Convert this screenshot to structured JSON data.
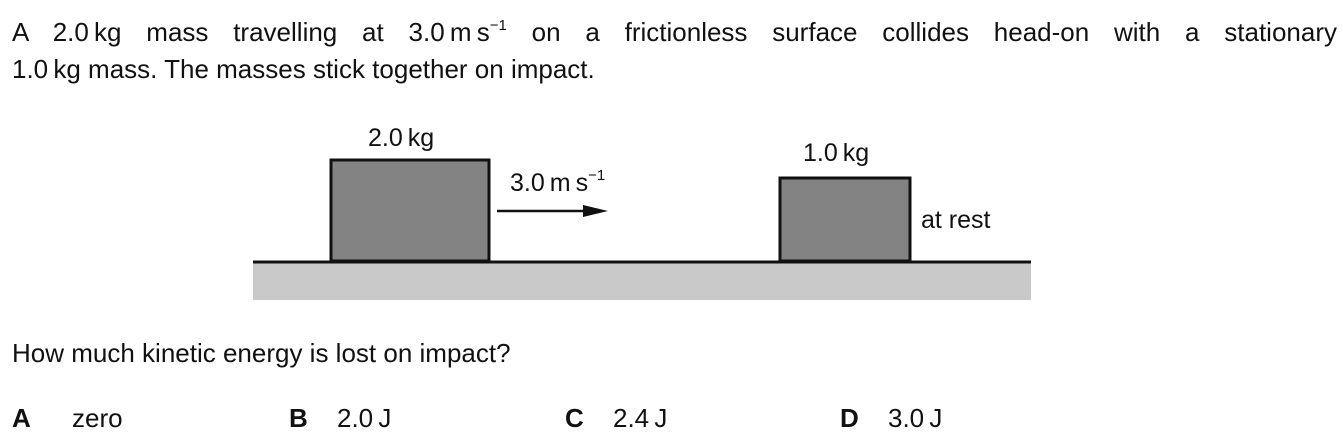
{
  "stem": {
    "line1_prefix": "A 2.0 kg mass travelling at 3.0 m s",
    "line1_sup": "−1",
    "line1_suffix": " on a frictionless surface collides head-on with a stationary",
    "line2": "1.0 kg mass. The masses stick together on impact."
  },
  "diagram": {
    "mass_left_label": "2.0 kg",
    "mass_right_label": "1.0 kg",
    "velocity_label": "3.0 m s",
    "velocity_sup": "−1",
    "rest_label": "at rest",
    "block_color": "#838383",
    "surface_color": "#c9c9c9"
  },
  "question": "How much kinetic energy is lost on impact?",
  "options": [
    {
      "letter": "A",
      "text": "zero"
    },
    {
      "letter": "B",
      "text": "2.0 J"
    },
    {
      "letter": "C",
      "text": "2.4 J"
    },
    {
      "letter": "D",
      "text": "3.0 J"
    }
  ]
}
